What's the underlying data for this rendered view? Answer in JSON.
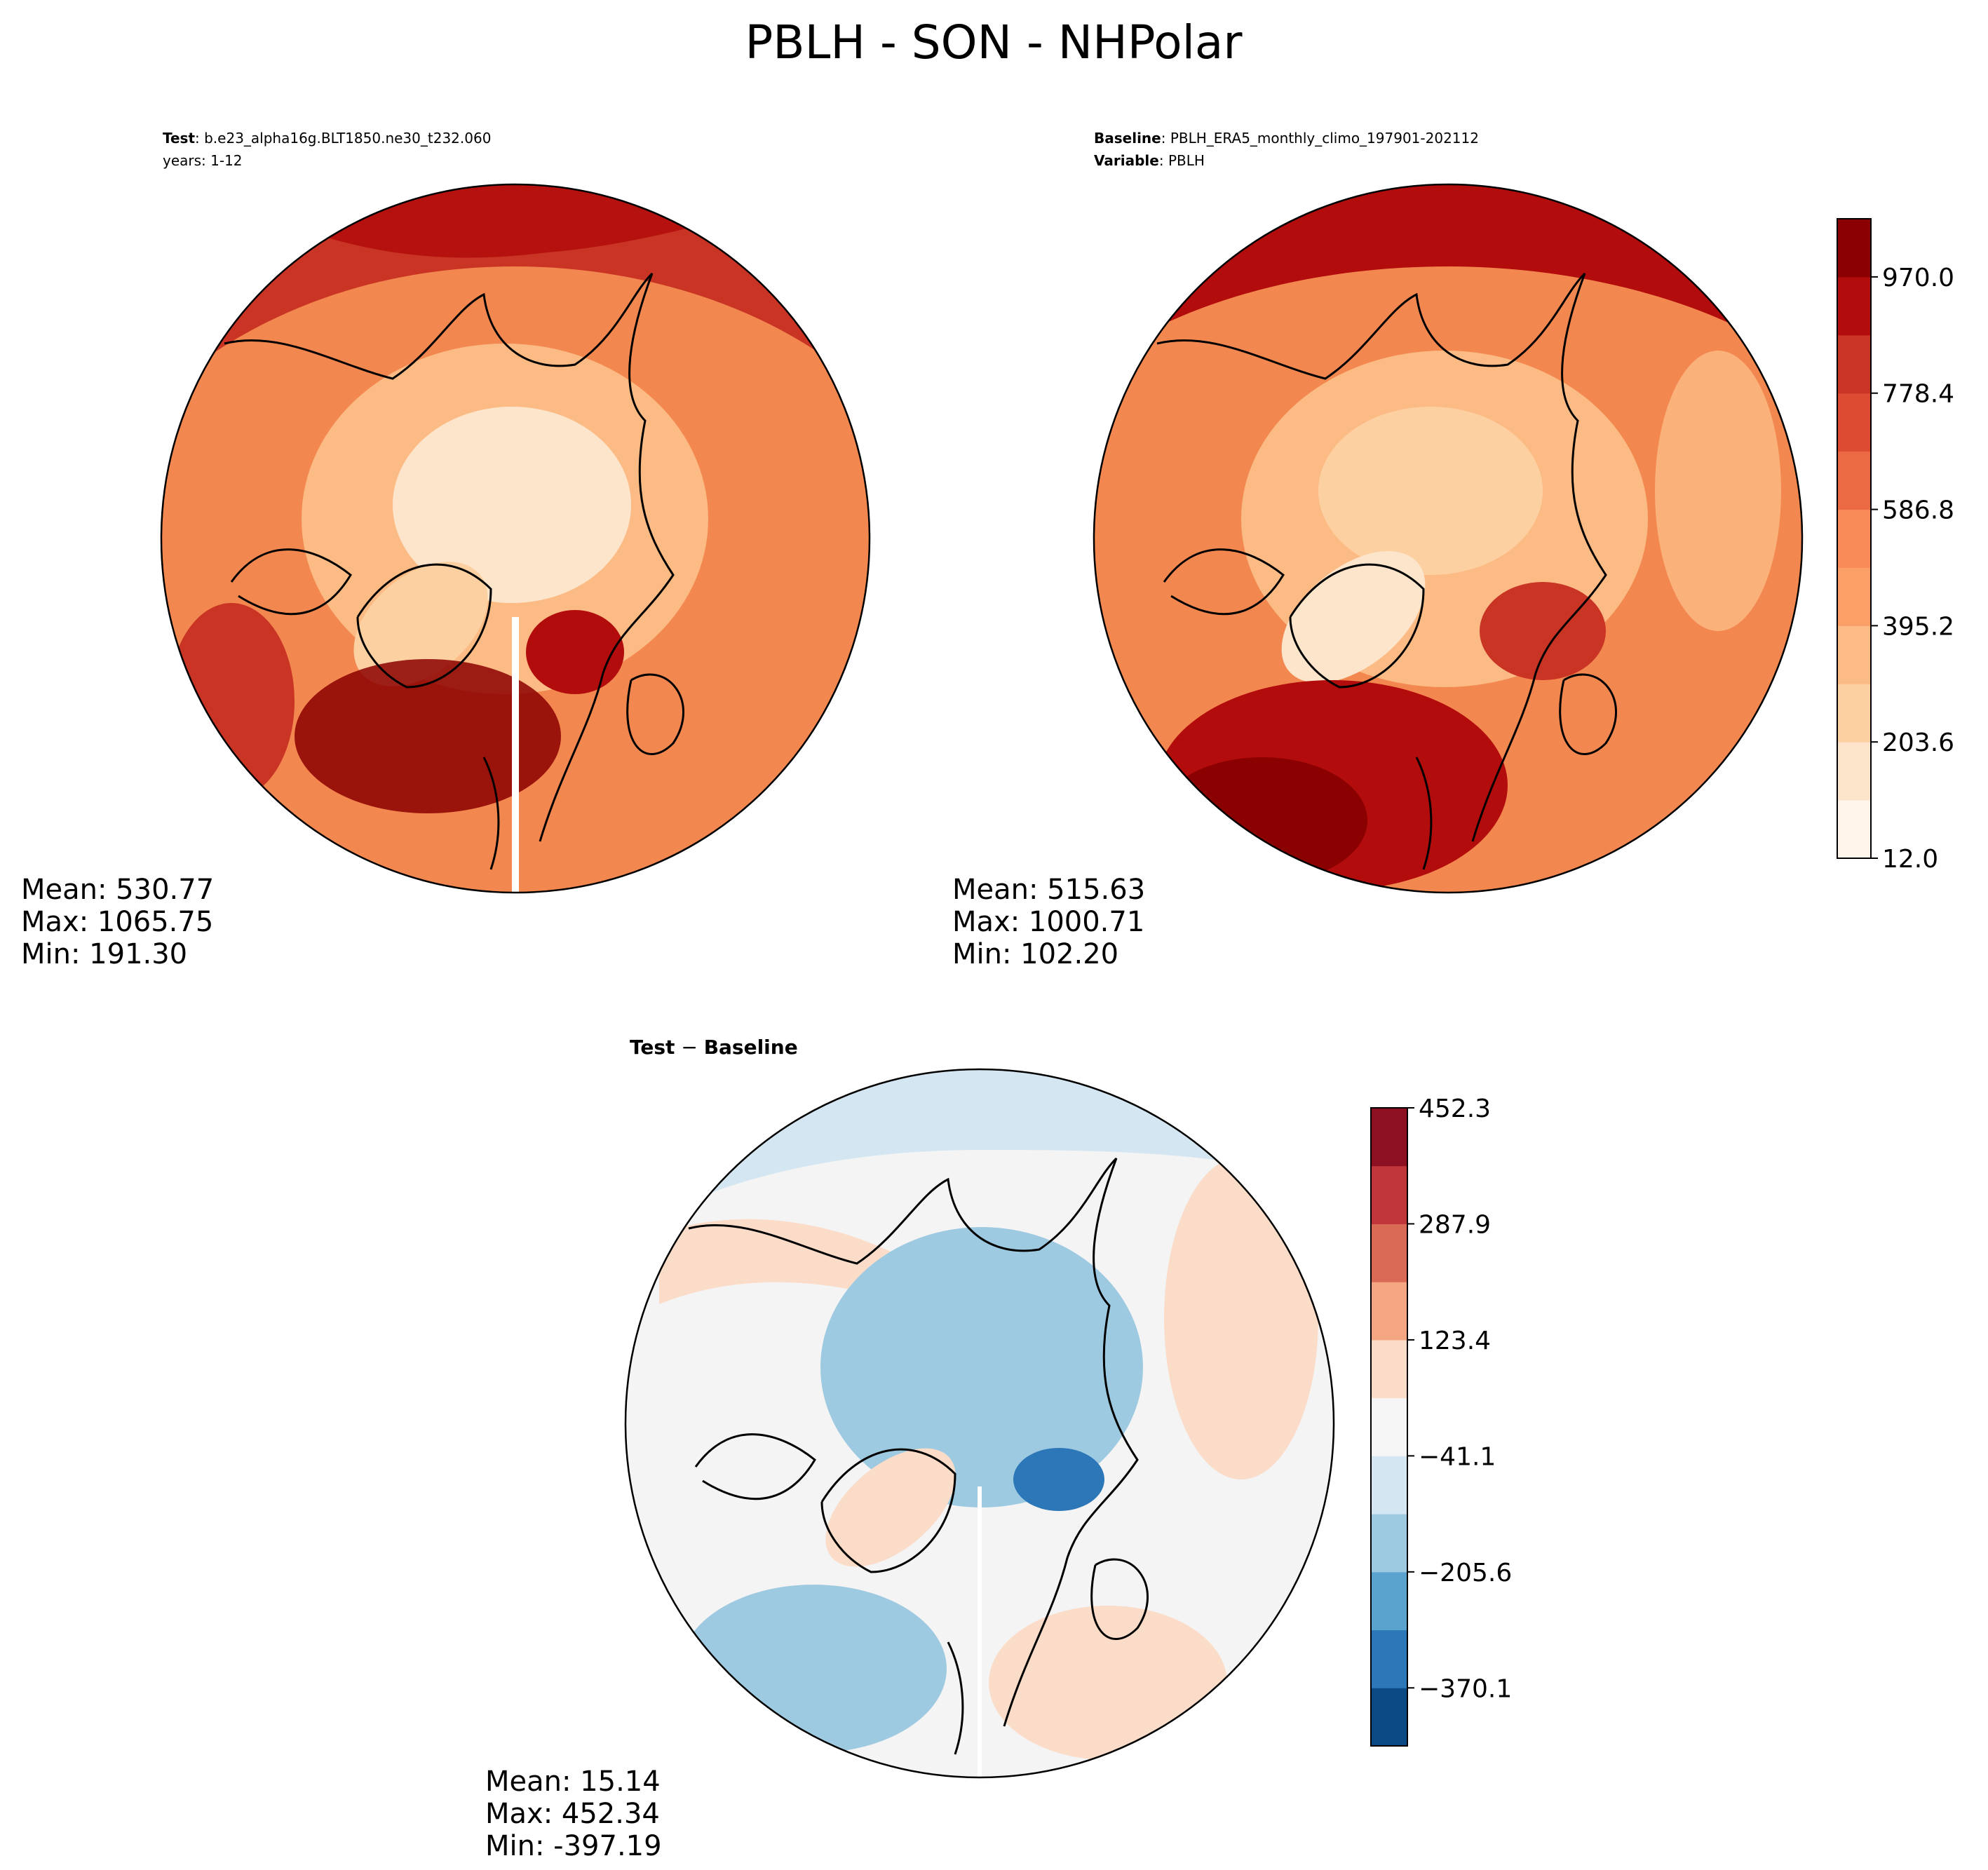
{
  "title": "PBLH - SON - NHPolar",
  "test_panel": {
    "label_key": "Test",
    "label_value": ": b.e23_alpha16g.BLT1850.ne30_t232.060",
    "years": "years: 1-12",
    "stats": {
      "mean": "Mean: 530.77",
      "max": "Max: 1065.75",
      "min": "Min: 191.30"
    }
  },
  "baseline_panel": {
    "label_key": "Baseline",
    "label_value": ": PBLH_ERA5_monthly_climo_197901-202112",
    "variable_key": "Variable",
    "variable_value": ": PBLH",
    "stats": {
      "mean": "Mean: 515.63",
      "max": "Max: 1000.71",
      "min": "Min: 102.20"
    }
  },
  "diff_panel": {
    "title_a": "Test",
    "title_op": " − ",
    "title_b": "Baseline",
    "stats": {
      "mean": "Mean: 15.14",
      "max": "Max: 452.34",
      "min": "Min: -397.19"
    }
  },
  "colorbar_main": {
    "ticks": [
      "970.0",
      "778.4",
      "586.8",
      "395.2",
      "203.6",
      "12.0"
    ],
    "colors": [
      "#fff5eb",
      "#fde5cc",
      "#fdd0a2",
      "#fcbb84",
      "#fc9f67",
      "#f88b58",
      "#ec6a43",
      "#dd4b33",
      "#c93424",
      "#b20c0c",
      "#8b0000"
    ]
  },
  "colorbar_diff": {
    "ticks": [
      "452.3",
      "287.9",
      "123.4",
      "−41.1",
      "−205.6",
      "−370.1"
    ],
    "colors": [
      "#0c4a86",
      "#2c77b7",
      "#5ba3cf",
      "#9ecae1",
      "#d4e6f2",
      "#f5f5f5",
      "#fbdcc9",
      "#f4a582",
      "#d96a55",
      "#c0353a",
      "#8c1021"
    ]
  },
  "map_fill": {
    "test": "#ec6a43",
    "baseline": "#f2884f",
    "diff": "#f4f4f4"
  }
}
